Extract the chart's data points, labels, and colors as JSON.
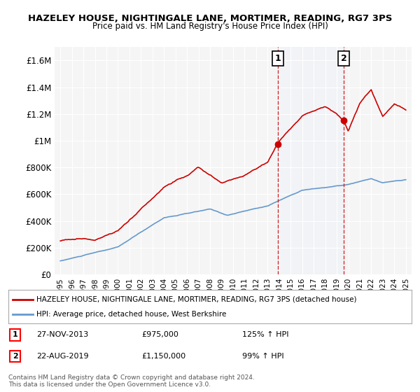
{
  "title": "HAZELEY HOUSE, NIGHTINGALE LANE, MORTIMER, READING, RG7 3PS",
  "subtitle": "Price paid vs. HM Land Registry's House Price Index (HPI)",
  "red_label": "HAZELEY HOUSE, NIGHTINGALE LANE, MORTIMER, READING, RG7 3PS (detached house)",
  "blue_label": "HPI: Average price, detached house, West Berkshire",
  "footnote": "Contains HM Land Registry data © Crown copyright and database right 2024.\nThis data is licensed under the Open Government Licence v3.0.",
  "sale1_date": "27-NOV-2013",
  "sale1_price": "£975,000",
  "sale1_hpi": "125% ↑ HPI",
  "sale1_x": 2013.9,
  "sale2_date": "22-AUG-2019",
  "sale2_price": "£1,150,000",
  "sale2_hpi": "99% ↑ HPI",
  "sale2_x": 2019.6,
  "sale2_y": 1150000,
  "sale1_y": 975000,
  "ylim": [
    0,
    1700000
  ],
  "xlim_start": 1994.5,
  "xlim_end": 2025.5,
  "yticks": [
    0,
    200000,
    400000,
    600000,
    800000,
    1000000,
    1200000,
    1400000,
    1600000
  ],
  "ytick_labels": [
    "£0",
    "£200K",
    "£400K",
    "£600K",
    "£800K",
    "£1M",
    "£1.2M",
    "£1.4M",
    "£1.6M"
  ],
  "background_color": "#ffffff",
  "plot_bg_color": "#f5f5f5",
  "red_color": "#cc0000",
  "blue_color": "#6699cc",
  "dashed_color": "#cc0000",
  "shaded_color": "#ddeeff"
}
